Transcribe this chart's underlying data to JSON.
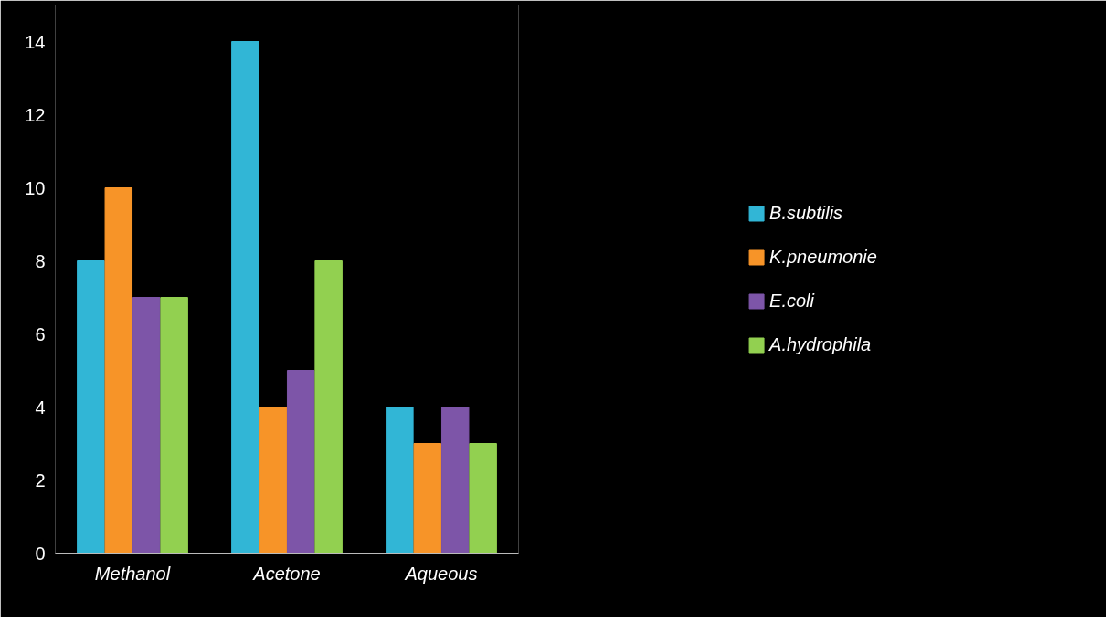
{
  "chart_data": {
    "type": "bar",
    "categories": [
      "Methanol",
      "Acetone",
      "Aqueous"
    ],
    "series": [
      {
        "name": "B.subtilis",
        "color": "#31b6d6",
        "values": [
          8,
          14,
          4
        ]
      },
      {
        "name": "K.pneumonie",
        "color": "#f79428",
        "values": [
          10,
          4,
          3
        ]
      },
      {
        "name": "E.coli",
        "color": "#7d55a8",
        "values": [
          7,
          5,
          4
        ]
      },
      {
        "name": "A.hydrophila",
        "color": "#92d050",
        "values": [
          7,
          8,
          3
        ]
      }
    ],
    "ylim": [
      0,
      15
    ],
    "yticks": [
      0,
      2,
      4,
      6,
      8,
      10,
      12,
      14
    ],
    "grid": false,
    "legend": "right"
  }
}
